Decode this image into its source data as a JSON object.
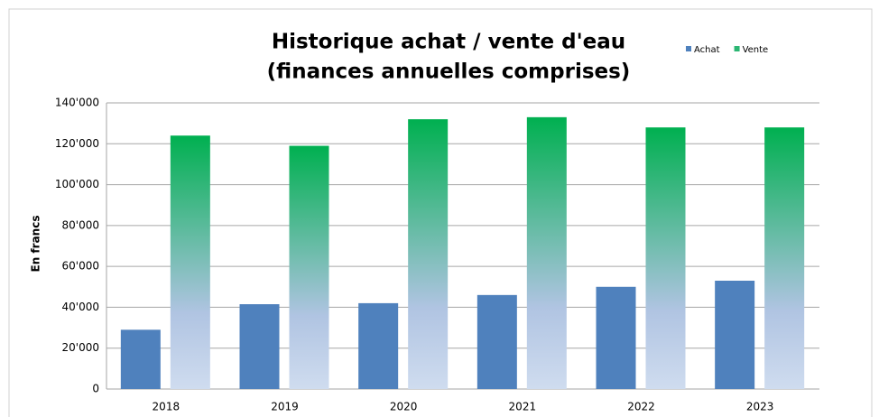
{
  "chart_data": {
    "type": "bar",
    "title": "Historique achat / vente d'eau",
    "subtitle": "(finances annuelles comprises)",
    "y_label": "En francs",
    "categories": [
      "2018",
      "2019",
      "2020",
      "2021",
      "2022",
      "2023"
    ],
    "series": [
      {
        "name": "Achat",
        "color": "#4f81bd",
        "values": [
          29000,
          41500,
          42000,
          46000,
          50000,
          53000
        ]
      },
      {
        "name": "Vente",
        "color": "#00b050",
        "values": [
          124000,
          119000,
          132000,
          133000,
          128000,
          128000
        ]
      }
    ],
    "ylim": [
      0,
      140000
    ],
    "yticks": [
      0,
      {
        "value": 20000,
        "label": "20'000"
      },
      {
        "value": 40000,
        "label": "40'000"
      },
      {
        "value": 60000,
        "label": "60'000"
      },
      {
        "value": 80000,
        "label": "80'000"
      },
      {
        "value": 100000,
        "label": "100'000"
      },
      {
        "value": 120000,
        "label": "120'000"
      },
      {
        "value": 140000,
        "label": "140'000"
      }
    ],
    "grid": true,
    "legend": "top-right"
  }
}
